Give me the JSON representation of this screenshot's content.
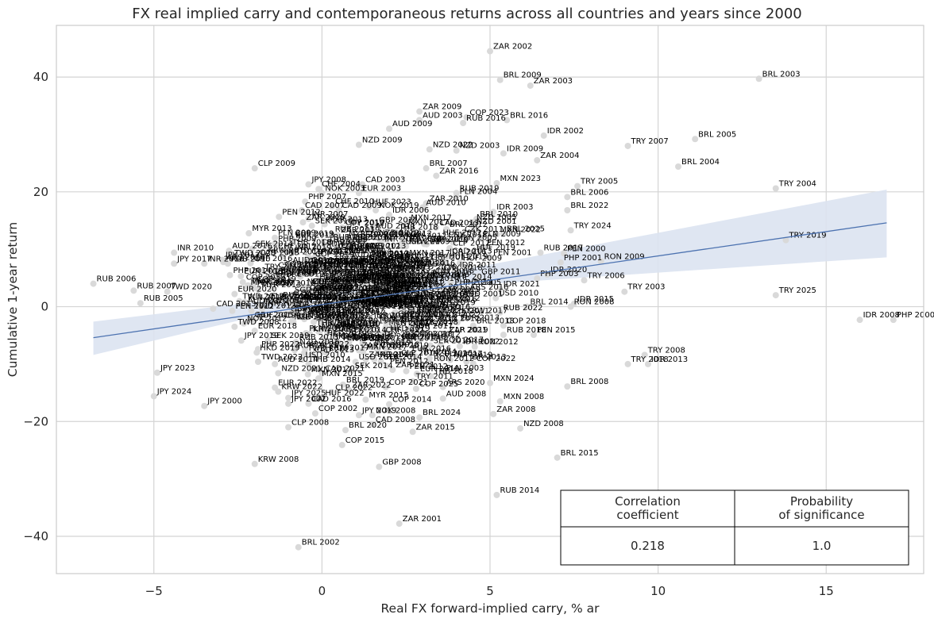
{
  "chart_data": {
    "type": "scatter",
    "title": "FX real implied carry and contemporaneous returns across all countries and years since 2000",
    "xlabel": "Real FX forward-implied carry, % ar",
    "ylabel": "Cumulative 1-year return",
    "xlim": [
      -7.9,
      17.9
    ],
    "ylim": [
      -46.5,
      49.0
    ],
    "xticks": [
      -5,
      0,
      5,
      10,
      15
    ],
    "yticks": [
      -40,
      -20,
      0,
      20,
      40
    ],
    "xtick_labels": [
      "−5",
      "0",
      "5",
      "10",
      "15"
    ],
    "ytick_labels": [
      "−40",
      "−20",
      "0",
      "20",
      "40"
    ],
    "grid": true,
    "colors": {
      "point": "#d9d9d9",
      "regression_line": "#4c72b0",
      "confidence_band": "#dbe3f1",
      "grid": "#d4d4d4",
      "frame": "#cccccc"
    },
    "regression": {
      "x_start": -6.8,
      "y_start": -5.4,
      "x_end": 16.8,
      "y_end": 14.6,
      "band_lower_start": -8.4,
      "band_upper_start": -2.6,
      "band_lower_end": 8.6,
      "band_upper_end": 20.4,
      "band_lower_mid": 2.4,
      "band_upper_mid": 2.9,
      "x_mid": 1.0
    },
    "points": [
      {
        "x": 5.0,
        "y": 44.5,
        "label": "ZAR 2002"
      },
      {
        "x": 5.3,
        "y": 39.5,
        "label": "BRL 2009"
      },
      {
        "x": 6.2,
        "y": 38.5,
        "label": "ZAR 2003"
      },
      {
        "x": 13.0,
        "y": 39.7,
        "label": "BRL 2003"
      },
      {
        "x": 2.9,
        "y": 34.0,
        "label": "ZAR 2009"
      },
      {
        "x": 2.9,
        "y": 32.5,
        "label": "AUD 2003"
      },
      {
        "x": 4.3,
        "y": 33.0,
        "label": "COP 2023"
      },
      {
        "x": 4.2,
        "y": 32.0,
        "label": "RUB 2016"
      },
      {
        "x": 5.5,
        "y": 32.5,
        "label": "BRL 2016"
      },
      {
        "x": 2.0,
        "y": 31.0,
        "label": "AUD 2009"
      },
      {
        "x": 6.6,
        "y": 29.8,
        "label": "IDR 2002"
      },
      {
        "x": 11.1,
        "y": 29.2,
        "label": "BRL 2005"
      },
      {
        "x": 9.1,
        "y": 28.0,
        "label": "TRY 2007"
      },
      {
        "x": 1.1,
        "y": 28.2,
        "label": "NZD 2009"
      },
      {
        "x": 3.2,
        "y": 27.4,
        "label": "NZD 2022"
      },
      {
        "x": 4.0,
        "y": 27.2,
        "label": "NZD 2003"
      },
      {
        "x": 5.4,
        "y": 26.7,
        "label": "IDR 2009"
      },
      {
        "x": 6.4,
        "y": 25.5,
        "label": "ZAR 2004"
      },
      {
        "x": -2.0,
        "y": 24.1,
        "label": "CLP 2009"
      },
      {
        "x": 3.1,
        "y": 24.1,
        "label": "BRL 2007"
      },
      {
        "x": 10.6,
        "y": 24.4,
        "label": "BRL 2004"
      },
      {
        "x": 3.4,
        "y": 22.8,
        "label": "ZAR 2016"
      },
      {
        "x": -0.4,
        "y": 21.3,
        "label": "JPY 2008"
      },
      {
        "x": 1.2,
        "y": 21.3,
        "label": "CAD 2003"
      },
      {
        "x": 5.2,
        "y": 21.5,
        "label": "MXN 2023"
      },
      {
        "x": 7.6,
        "y": 21.0,
        "label": "TRY 2005"
      },
      {
        "x": 13.5,
        "y": 20.6,
        "label": "TRY 2004"
      },
      {
        "x": -0.1,
        "y": 20.5,
        "label": "CHF 2004"
      },
      {
        "x": 1.1,
        "y": 19.8,
        "label": "EUR 2003"
      },
      {
        "x": 0.0,
        "y": 19.8,
        "label": "NOK 2003"
      },
      {
        "x": 4.0,
        "y": 19.8,
        "label": "RUB 2019"
      },
      {
        "x": 7.3,
        "y": 19.1,
        "label": "BRL 2006"
      },
      {
        "x": 4.0,
        "y": 19.2,
        "label": "PLN 2004"
      },
      {
        "x": -0.5,
        "y": 18.3,
        "label": "PHP 2007"
      },
      {
        "x": 3.1,
        "y": 18.0,
        "label": "ZAR 2010"
      },
      {
        "x": 0.3,
        "y": 17.5,
        "label": "CHF 2010"
      },
      {
        "x": 1.4,
        "y": 17.4,
        "label": "HUF 2023"
      },
      {
        "x": 3.0,
        "y": 17.3,
        "label": "AUD 2010"
      },
      {
        "x": -0.6,
        "y": 16.8,
        "label": "CAD 2007"
      },
      {
        "x": 0.5,
        "y": 16.8,
        "label": "CAD 2009"
      },
      {
        "x": 1.6,
        "y": 16.8,
        "label": "NOK 2019"
      },
      {
        "x": 7.3,
        "y": 16.8,
        "label": "BRL 2022"
      },
      {
        "x": 5.1,
        "y": 16.5,
        "label": "IDR 2003"
      },
      {
        "x": 2.0,
        "y": 16.0,
        "label": "IDR 2006"
      },
      {
        "x": -0.4,
        "y": 15.3,
        "label": "INR 2007"
      },
      {
        "x": 4.6,
        "y": 15.3,
        "label": "BRL 2010"
      },
      {
        "x": 4.5,
        "y": 14.7,
        "label": "NZD 2005"
      },
      {
        "x": 4.5,
        "y": 14.0,
        "label": "NZD 2001"
      },
      {
        "x": -0.3,
        "y": 14.1,
        "label": "SEK 2010"
      },
      {
        "x": 0.6,
        "y": 13.8,
        "label": "COP 2010"
      },
      {
        "x": 1.5,
        "y": 13.2,
        "label": "AUD 2011"
      },
      {
        "x": 3.7,
        "y": 13.5,
        "label": "BRL 2012"
      },
      {
        "x": 7.4,
        "y": 13.3,
        "label": "TRY 2024"
      },
      {
        "x": 5.4,
        "y": 12.7,
        "label": "BRL 2025"
      },
      {
        "x": 5.2,
        "y": 12.6,
        "label": "MXN 2022"
      },
      {
        "x": 1.6,
        "y": 12.0,
        "label": "NZD 2012"
      },
      {
        "x": 3.5,
        "y": 12.0,
        "label": "HUF 2012"
      },
      {
        "x": 4.7,
        "y": 11.8,
        "label": "PLN 2009"
      },
      {
        "x": -1.4,
        "y": 12.0,
        "label": "PLN 2009"
      },
      {
        "x": 0.7,
        "y": 11.8,
        "label": "MYR 2009"
      },
      {
        "x": 2.4,
        "y": 11.5,
        "label": "MXN 2012"
      },
      {
        "x": 3.9,
        "y": 11.2,
        "label": "MXN 2005"
      },
      {
        "x": 13.8,
        "y": 11.6,
        "label": "TRY 2019"
      },
      {
        "x": -1.4,
        "y": 11.0,
        "label": "PHP 2009"
      },
      {
        "x": 0.1,
        "y": 10.8,
        "label": "THB 2009"
      },
      {
        "x": 2.5,
        "y": 10.5,
        "label": "KRW 2009"
      },
      {
        "x": 3.8,
        "y": 10.2,
        "label": "CLP 2012"
      },
      {
        "x": -1.4,
        "y": 9.7,
        "label": "CHF 2012"
      },
      {
        "x": 0.4,
        "y": 9.7,
        "label": "CZK 2017"
      },
      {
        "x": 6.5,
        "y": 9.4,
        "label": "RUB 2017"
      },
      {
        "x": -4.4,
        "y": 9.4,
        "label": "INR 2010"
      },
      {
        "x": -1.7,
        "y": 9.0,
        "label": "KRW 2010"
      },
      {
        "x": 0.7,
        "y": 8.9,
        "label": "ILS 2009"
      },
      {
        "x": 3.7,
        "y": 8.7,
        "label": "IDR 2016"
      },
      {
        "x": 5.0,
        "y": 8.6,
        "label": "PEN 2001"
      },
      {
        "x": 7.2,
        "y": 9.3,
        "label": "PEN 2000"
      },
      {
        "x": -2.7,
        "y": 8.5,
        "label": "TWD 2025"
      },
      {
        "x": 7.1,
        "y": 7.7,
        "label": "PHP 2001"
      },
      {
        "x": 8.3,
        "y": 7.9,
        "label": "RON 2009"
      },
      {
        "x": -4.4,
        "y": 7.5,
        "label": "JPY 2017"
      },
      {
        "x": -3.5,
        "y": 7.5,
        "label": "INR 2016"
      },
      {
        "x": -2.8,
        "y": 7.5,
        "label": "RUB 2010"
      },
      {
        "x": 1.7,
        "y": 7.8,
        "label": "ILS 2010"
      },
      {
        "x": 4.1,
        "y": 7.6,
        "label": "HUF 2009"
      },
      {
        "x": 4.0,
        "y": 6.4,
        "label": "IDR 2011"
      },
      {
        "x": 6.7,
        "y": 5.6,
        "label": "IDR 2020"
      },
      {
        "x": -1.2,
        "y": 6.6,
        "label": "COP 2007"
      },
      {
        "x": 1.8,
        "y": 5.9,
        "label": "MYR 2010"
      },
      {
        "x": -1.4,
        "y": 5.2,
        "label": "CZK 2019"
      },
      {
        "x": 6.4,
        "y": 4.9,
        "label": "PHP 2003"
      },
      {
        "x": 7.8,
        "y": 4.6,
        "label": "TRY 2006"
      },
      {
        "x": -6.8,
        "y": 4.0,
        "label": "RUB 2006"
      },
      {
        "x": -2.2,
        "y": 3.7,
        "label": "TWD 2016"
      },
      {
        "x": 0.8,
        "y": 3.6,
        "label": "SGD 2013"
      },
      {
        "x": 2.4,
        "y": 3.6,
        "label": "CNY 2013"
      },
      {
        "x": 4.1,
        "y": 3.4,
        "label": "PHP 2005"
      },
      {
        "x": 5.3,
        "y": 3.1,
        "label": "IDR 2021"
      },
      {
        "x": -5.6,
        "y": 2.8,
        "label": "RUB 2007"
      },
      {
        "x": -4.6,
        "y": 2.6,
        "label": "TWD 2020"
      },
      {
        "x": 9.0,
        "y": 2.6,
        "label": "TRY 2003"
      },
      {
        "x": 13.5,
        "y": 2.0,
        "label": "TRY 2025"
      },
      {
        "x": -2.6,
        "y": 2.2,
        "label": "EUR 2020"
      },
      {
        "x": -0.2,
        "y": 2.4,
        "label": "HKD 2013"
      },
      {
        "x": 1.4,
        "y": 2.2,
        "label": "SGD 2016"
      },
      {
        "x": 3.5,
        "y": 1.8,
        "label": "INR 2012"
      },
      {
        "x": -5.4,
        "y": 0.6,
        "label": "RUB 2005"
      },
      {
        "x": -2.3,
        "y": 0.8,
        "label": "PLN 2013"
      },
      {
        "x": -0.8,
        "y": 0.9,
        "label": "CAD 2015"
      },
      {
        "x": 2.7,
        "y": 0.9,
        "label": "MXN 2014"
      },
      {
        "x": 4.1,
        "y": 1.4,
        "label": "AUD 2001"
      },
      {
        "x": -2.3,
        "y": 0.2,
        "label": "AUD 2020"
      },
      {
        "x": 2.5,
        "y": 0.1,
        "label": "NOK 2014"
      },
      {
        "x": 7.5,
        "y": 0.5,
        "label": "IDR 2015"
      },
      {
        "x": 6.1,
        "y": 0.0,
        "label": "BRL 2014"
      },
      {
        "x": 7.4,
        "y": 0.0,
        "label": "RON 2008"
      },
      {
        "x": -2.1,
        "y": -0.7,
        "label": "TWD 2013"
      },
      {
        "x": 0.0,
        "y": -0.7,
        "label": "KRW 2013"
      },
      {
        "x": 2.9,
        "y": -1.0,
        "label": "NZD 2011"
      },
      {
        "x": 5.3,
        "y": -1.0,
        "label": "RUB 2022"
      },
      {
        "x": -2.1,
        "y": -2.3,
        "label": "GBP 2015"
      },
      {
        "x": -0.9,
        "y": -1.6,
        "label": "JPY 2015"
      },
      {
        "x": 3.6,
        "y": -2.3,
        "label": "ILS 2022"
      },
      {
        "x": 16.0,
        "y": -2.3,
        "label": "IDR 2008"
      },
      {
        "x": 17.0,
        "y": -2.3,
        "label": "PHP 2000"
      },
      {
        "x": -2.6,
        "y": -3.5,
        "label": "TWD 2008"
      },
      {
        "x": 2.8,
        "y": -3.5,
        "label": "CZK 2018"
      },
      {
        "x": 4.5,
        "y": -3.3,
        "label": "BRL 2018"
      },
      {
        "x": 5.4,
        "y": -3.3,
        "label": "COP 2018"
      },
      {
        "x": -2.0,
        "y": -4.2,
        "label": "EUR 2018"
      },
      {
        "x": 1.8,
        "y": -4.9,
        "label": "CHF 2021"
      },
      {
        "x": 3.7,
        "y": -4.9,
        "label": "CLP 2021"
      },
      {
        "x": 5.4,
        "y": -4.9,
        "label": "RUB 2018"
      },
      {
        "x": 6.3,
        "y": -4.9,
        "label": "PEN 2015"
      },
      {
        "x": -2.4,
        "y": -5.9,
        "label": "JPY 2019"
      },
      {
        "x": -1.6,
        "y": -5.9,
        "label": "SEK 2019"
      },
      {
        "x": 0.4,
        "y": -5.9,
        "label": "MXN 2019"
      },
      {
        "x": 2.4,
        "y": -6.1,
        "label": "NZD 2018"
      },
      {
        "x": 4.1,
        "y": -6.9,
        "label": "IDR 2022"
      },
      {
        "x": -1.9,
        "y": -7.4,
        "label": "PHP 2022"
      },
      {
        "x": -0.5,
        "y": -7.4,
        "label": "KRW 2022"
      },
      {
        "x": 1.1,
        "y": -7.6,
        "label": "ZAR 2018"
      },
      {
        "x": 2.8,
        "y": -8.7,
        "label": "TRY 2014"
      },
      {
        "x": -1.9,
        "y": -9.6,
        "label": "TWD 2022"
      },
      {
        "x": -1.4,
        "y": -10.0,
        "label": "AUD 2014"
      },
      {
        "x": -0.4,
        "y": -10.0,
        "label": "THB 2014"
      },
      {
        "x": 1.3,
        "y": -9.2,
        "label": "ZAR 2014"
      },
      {
        "x": 3.2,
        "y": -9.0,
        "label": "NZD 2015"
      },
      {
        "x": 4.3,
        "y": -9.6,
        "label": "IDR 2013"
      },
      {
        "x": 4.5,
        "y": -9.9,
        "label": "COP 2022"
      },
      {
        "x": 9.1,
        "y": -10.0,
        "label": "TRY 2018"
      },
      {
        "x": 9.7,
        "y": -10.0,
        "label": "IDR 2013"
      },
      {
        "x": 9.6,
        "y": -8.4,
        "label": "TRY 2008"
      },
      {
        "x": -1.3,
        "y": -11.6,
        "label": "NZD 2021"
      },
      {
        "x": 0.0,
        "y": -11.6,
        "label": "CAD 2021"
      },
      {
        "x": 2.1,
        "y": -11.0,
        "label": "ZAR 2021"
      },
      {
        "x": 3.6,
        "y": -11.5,
        "label": "PLN 2003"
      },
      {
        "x": -4.9,
        "y": -11.5,
        "label": "JPY 2023"
      },
      {
        "x": -0.1,
        "y": -12.5,
        "label": "MXN 2015"
      },
      {
        "x": 2.7,
        "y": -13.0,
        "label": "TRY 2011"
      },
      {
        "x": 5.0,
        "y": -13.3,
        "label": "MXN 2024"
      },
      {
        "x": 7.3,
        "y": -13.9,
        "label": "BRL 2008"
      },
      {
        "x": -1.4,
        "y": -14.1,
        "label": "EUR 2022"
      },
      {
        "x": 0.8,
        "y": -14.5,
        "label": "ZAR 2022"
      },
      {
        "x": 1.9,
        "y": -14.0,
        "label": "COP 2021"
      },
      {
        "x": 2.8,
        "y": -14.3,
        "label": "COP 2025"
      },
      {
        "x": 3.6,
        "y": -14.0,
        "label": "ARS 2020"
      },
      {
        "x": -1.3,
        "y": -14.8,
        "label": "KRW 2022"
      },
      {
        "x": 0.3,
        "y": -14.9,
        "label": "CLP 2022"
      },
      {
        "x": -5.0,
        "y": -15.6,
        "label": "JPY 2024"
      },
      {
        "x": -1.0,
        "y": -15.9,
        "label": "JPY 2025"
      },
      {
        "x": 0.0,
        "y": -15.9,
        "label": "HUF 2022"
      },
      {
        "x": 1.3,
        "y": -16.2,
        "label": "MYR 2015"
      },
      {
        "x": 3.6,
        "y": -16.0,
        "label": "AUD 2008"
      },
      {
        "x": 5.3,
        "y": -16.5,
        "label": "MXN 2008"
      },
      {
        "x": -1.0,
        "y": -16.9,
        "label": "JPY 2002"
      },
      {
        "x": -0.4,
        "y": -16.9,
        "label": "CAD 2016"
      },
      {
        "x": 2.0,
        "y": -17.0,
        "label": "COP 2014"
      },
      {
        "x": -3.5,
        "y": -17.3,
        "label": "JPY 2000"
      },
      {
        "x": -0.2,
        "y": -18.6,
        "label": "COP 2002"
      },
      {
        "x": 1.1,
        "y": -18.9,
        "label": "JPY 2019"
      },
      {
        "x": 1.5,
        "y": -18.9,
        "label": "NOK 2008"
      },
      {
        "x": 5.1,
        "y": -18.7,
        "label": "ZAR 2008"
      },
      {
        "x": 2.9,
        "y": -19.3,
        "label": "BRL 2024"
      },
      {
        "x": 1.5,
        "y": -20.5,
        "label": "CAD 2008"
      },
      {
        "x": -1.0,
        "y": -21.0,
        "label": "CLP 2008"
      },
      {
        "x": 0.7,
        "y": -21.5,
        "label": "BRL 2020"
      },
      {
        "x": 5.9,
        "y": -21.2,
        "label": "NZD 2008"
      },
      {
        "x": 2.7,
        "y": -21.8,
        "label": "ZAR 2015"
      },
      {
        "x": 0.6,
        "y": -24.1,
        "label": "COP 2015"
      },
      {
        "x": 7.0,
        "y": -26.3,
        "label": "BRL 2015"
      },
      {
        "x": -2.0,
        "y": -27.4,
        "label": "KRW 2008"
      },
      {
        "x": 1.7,
        "y": -27.9,
        "label": "GBP 2008"
      },
      {
        "x": 5.2,
        "y": -32.8,
        "label": "RUB 2014"
      },
      {
        "x": 2.3,
        "y": -37.8,
        "label": "ZAR 2001"
      },
      {
        "x": -0.7,
        "y": -41.9,
        "label": "BRL 2002"
      }
    ],
    "dense_cluster": {
      "count": 360,
      "x_min": -2.6,
      "x_max": 4.4,
      "y_min": -10.0,
      "y_max": 14.5,
      "label_pool": [
        "EUR 2013",
        "USD 2010",
        "GBP 2011",
        "SEK 2014",
        "NOK 2012",
        "CHF 2016",
        "CZK 2011",
        "HUF 2019",
        "PLN 2017",
        "KRW 2017",
        "TWD 2019",
        "THB 2018",
        "MYR 2013",
        "SGD 2017",
        "PHP 2014",
        "INR 2019",
        "IDR 2017",
        "CNY 2018",
        "ILS 2019",
        "ZAR 2019",
        "TRY 2012",
        "MXN 2017",
        "BRL 2019",
        "CLP 2014",
        "COP 2019",
        "PEN 2012",
        "RUB 2013",
        "AUD 2016",
        "NZD 2016",
        "CAD 2013",
        "JPY 2012",
        "HKD 2019",
        "RON 2012",
        "ARS 2016",
        "EUR 2016",
        "GBP 2019"
      ]
    },
    "table": {
      "headers": [
        "Correlation\ncoefficient",
        "Probability\nof significance"
      ],
      "header_lines": [
        [
          "Correlation",
          "coefficient"
        ],
        [
          "Probability",
          "of significance"
        ]
      ],
      "values": [
        "0.218",
        "1.0"
      ]
    }
  }
}
